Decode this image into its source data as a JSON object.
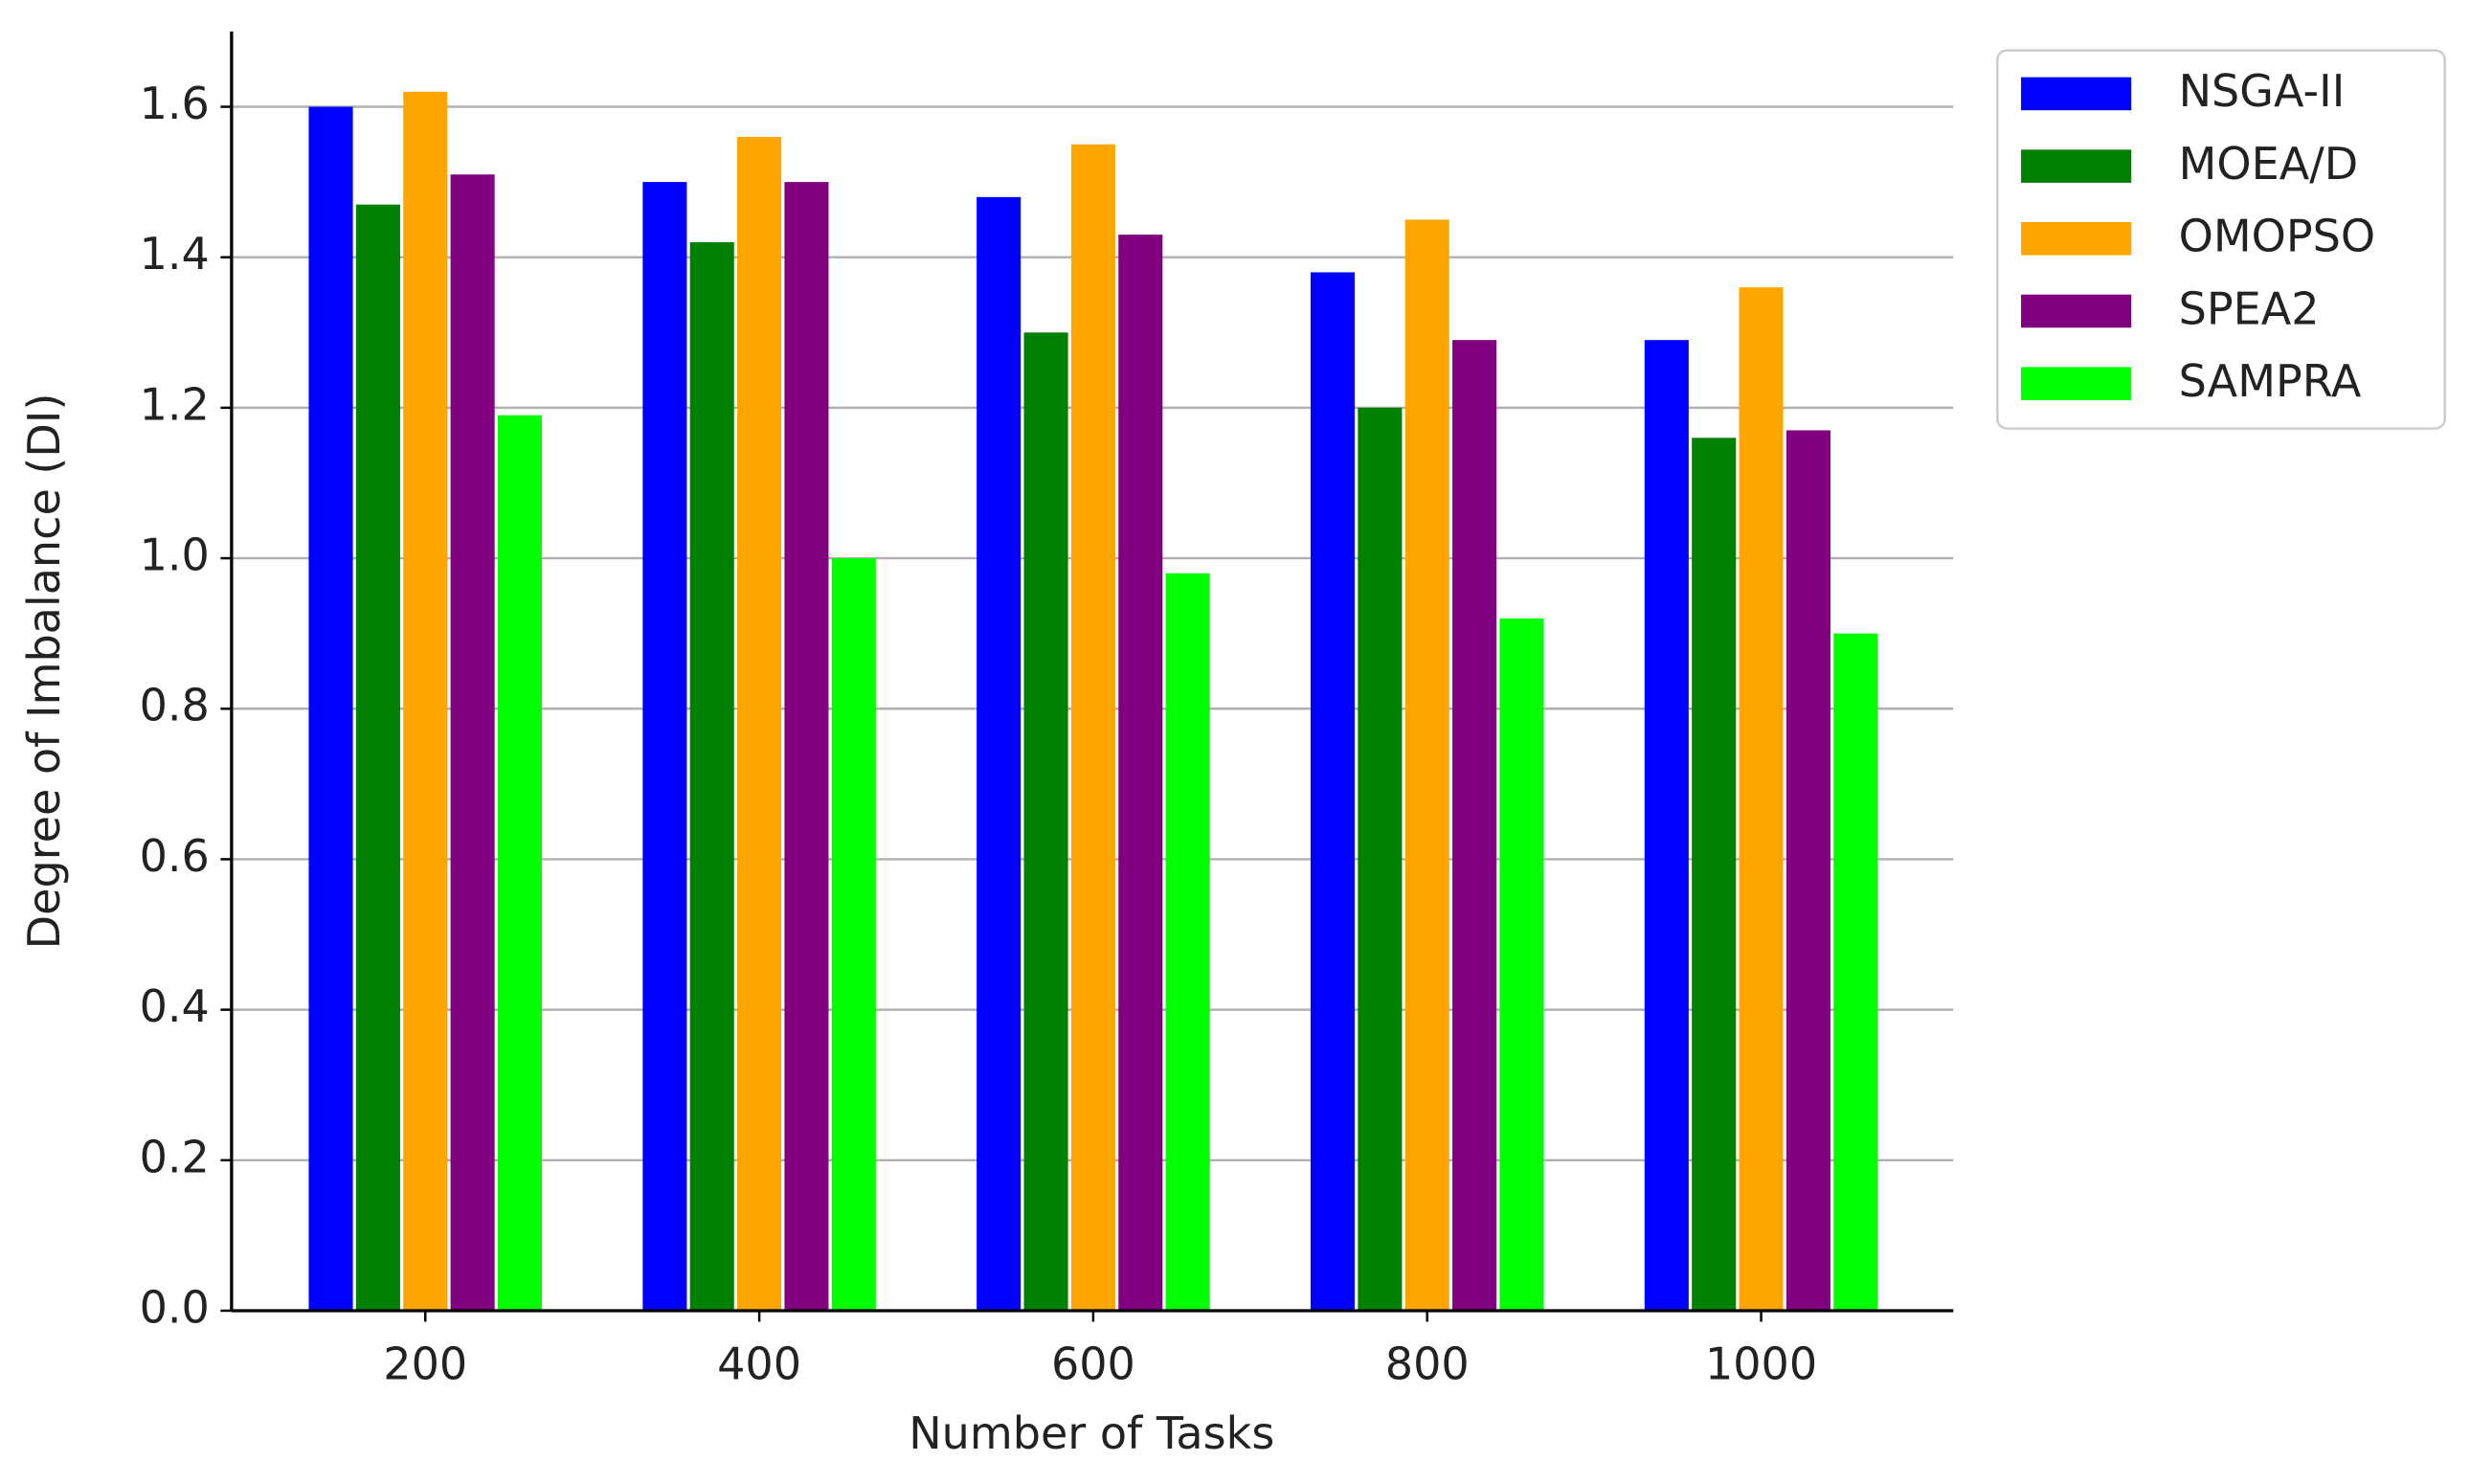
{
  "chart_data": {
    "type": "bar",
    "x_label": "Number of Tasks",
    "y_label": "Degree of Imbalance (DI)",
    "categories": [
      "200",
      "400",
      "600",
      "800",
      "1000"
    ],
    "series": [
      {
        "name": "NSGA-II",
        "color": "#0000ff",
        "values": [
          1.6,
          1.5,
          1.48,
          1.38,
          1.29
        ]
      },
      {
        "name": "MOEA/D",
        "color": "#008000",
        "values": [
          1.47,
          1.42,
          1.3,
          1.2,
          1.16
        ]
      },
      {
        "name": "OMOPSO",
        "color": "#ffa500",
        "values": [
          1.62,
          1.56,
          1.55,
          1.45,
          1.36
        ]
      },
      {
        "name": "SPEA2",
        "color": "#800080",
        "values": [
          1.51,
          1.5,
          1.43,
          1.29,
          1.17
        ]
      },
      {
        "name": "SAMPRA",
        "color": "#00ff00",
        "values": [
          1.19,
          1.0,
          0.98,
          0.92,
          0.9
        ]
      }
    ],
    "ylim": [
      0,
      1.7
    ],
    "yticks": [
      {
        "value": 0,
        "label": "0.0"
      },
      {
        "value": 0.2,
        "label": "0.2"
      },
      {
        "value": 0.4,
        "label": "0.4"
      },
      {
        "value": 0.6,
        "label": "0.6"
      },
      {
        "value": 0.8,
        "label": "0.8"
      },
      {
        "value": 1.0,
        "label": "1.0"
      },
      {
        "value": 1.2,
        "label": "1.2"
      },
      {
        "value": 1.4,
        "label": "1.4"
      },
      {
        "value": 1.6,
        "label": "1.6"
      }
    ],
    "grid": true,
    "legend": "outside-upper-right"
  }
}
